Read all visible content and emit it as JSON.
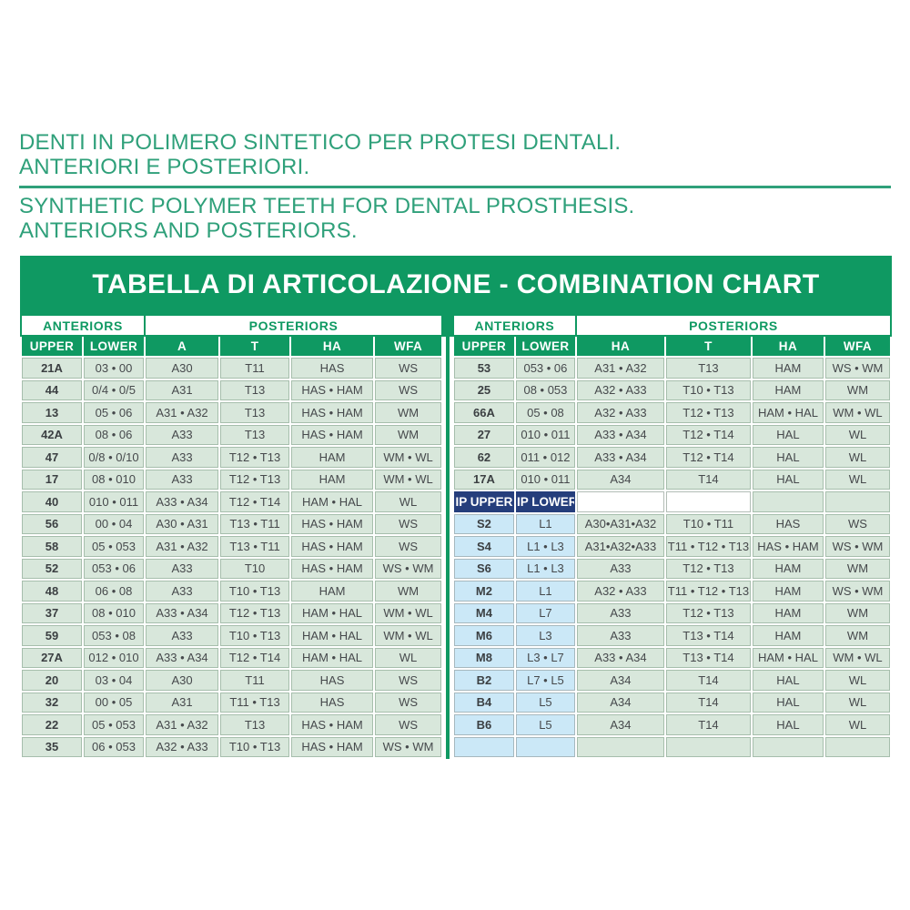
{
  "page": {
    "heading_it": [
      "DENTI IN POLIMERO SINTETICO PER PROTESI DENTALI.",
      "ANTERIORI E POSTERIORI."
    ],
    "heading_en": [
      "SYNTHETIC POLYMER TEETH FOR DENTAL PROSTHESIS.",
      "ANTERIORS AND POSTERIORS."
    ]
  },
  "chart": {
    "title": "TABELLA DI ARTICOLAZIONE - COMBINATION CHART",
    "colors": {
      "band_green": "#0F9962",
      "heading_green": "#2FA07A",
      "cell_green": "#D8E7DB",
      "cell_green_border": "#A6BEAC",
      "cell_blue": "#CBE8F7",
      "ip_navy": "#253E7C",
      "body_text": "#46494C"
    },
    "left_table": {
      "group_headers": [
        "ANTERIORS",
        "POSTERIORS"
      ],
      "columns": [
        "UPPER",
        "LOWER",
        "A",
        "T",
        "HA",
        "WFA"
      ],
      "rows": [
        [
          "21A",
          "03 • 00",
          "A30",
          "T11",
          "HAS",
          "WS"
        ],
        [
          "44",
          "0/4 • 0/5",
          "A31",
          "T13",
          "HAS • HAM",
          "WS"
        ],
        [
          "13",
          "05 • 06",
          "A31 • A32",
          "T13",
          "HAS • HAM",
          "WM"
        ],
        [
          "42A",
          "08 • 06",
          "A33",
          "T13",
          "HAS • HAM",
          "WM"
        ],
        [
          "47",
          "0/8 • 0/10",
          "A33",
          "T12 • T13",
          "HAM",
          "WM • WL"
        ],
        [
          "17",
          "08 • 010",
          "A33",
          "T12 • T13",
          "HAM",
          "WM • WL"
        ],
        [
          "40",
          "010 • 011",
          "A33 • A34",
          "T12 • T14",
          "HAM • HAL",
          "WL"
        ],
        [
          "56",
          "00 • 04",
          "A30 • A31",
          "T13 • T11",
          "HAS • HAM",
          "WS"
        ],
        [
          "58",
          "05 • 053",
          "A31 • A32",
          "T13 • T11",
          "HAS • HAM",
          "WS"
        ],
        [
          "52",
          "053 • 06",
          "A33",
          "T10",
          "HAS • HAM",
          "WS • WM"
        ],
        [
          "48",
          "06 • 08",
          "A33",
          "T10 • T13",
          "HAM",
          "WM"
        ],
        [
          "37",
          "08 • 010",
          "A33 • A34",
          "T12 • T13",
          "HAM • HAL",
          "WM • WL"
        ],
        [
          "59",
          "053 • 08",
          "A33",
          "T10 • T13",
          "HAM • HAL",
          "WM • WL"
        ],
        [
          "27A",
          "012 • 010",
          "A33 • A34",
          "T12 • T14",
          "HAM • HAL",
          "WL"
        ],
        [
          "20",
          "03 • 04",
          "A30",
          "T11",
          "HAS",
          "WS"
        ],
        [
          "32",
          "00 • 05",
          "A31",
          "T11 • T13",
          "HAS",
          "WS"
        ],
        [
          "22",
          "05 • 053",
          "A31 • A32",
          "T13",
          "HAS • HAM",
          "WS"
        ],
        [
          "35",
          "06 • 053",
          "A32 • A33",
          "T10 • T13",
          "HAS • HAM",
          "WS • WM"
        ]
      ]
    },
    "right_table": {
      "group_headers": [
        "ANTERIORS",
        "POSTERIORS"
      ],
      "columns": [
        "UPPER",
        "LOWER",
        "HA",
        "T",
        "HA",
        "WFA"
      ],
      "rows_top": [
        [
          "53",
          "053 • 06",
          "A31 • A32",
          "T13",
          "HAM",
          "WS • WM"
        ],
        [
          "25",
          "08 • 053",
          "A32 • A33",
          "T10 • T13",
          "HAM",
          "WM"
        ],
        [
          "66A",
          "05 • 08",
          "A32 • A33",
          "T12 • T13",
          "HAM • HAL",
          "WM • WL"
        ],
        [
          "27",
          "010 • 011",
          "A33 • A34",
          "T12 • T14",
          "HAL",
          "WL"
        ],
        [
          "62",
          "011 • 012",
          "A33 • A34",
          "T12 • T14",
          "HAL",
          "WL"
        ],
        [
          "17A",
          "010 • 011",
          "A34",
          "T14",
          "HAL",
          "WL"
        ]
      ],
      "ip_header": {
        "upper": "IP UPPER",
        "lower": "IP LOWER"
      },
      "rows_ip": [
        [
          "S2",
          "L1",
          "A30•A31•A32",
          "T10 • T11",
          "HAS",
          "WS"
        ],
        [
          "S4",
          "L1 • L3",
          "A31•A32•A33",
          "T11 • T12 • T13",
          "HAS • HAM",
          "WS • WM"
        ],
        [
          "S6",
          "L1 • L3",
          "A33",
          "T12 • T13",
          "HAM",
          "WM"
        ],
        [
          "M2",
          "L1",
          "A32 • A33",
          "T11 • T12 • T13",
          "HAM",
          "WS • WM"
        ],
        [
          "M4",
          "L7",
          "A33",
          "T12 • T13",
          "HAM",
          "WM"
        ],
        [
          "M6",
          "L3",
          "A33",
          "T13 • T14",
          "HAM",
          "WM"
        ],
        [
          "M8",
          "L3 • L7",
          "A33 • A34",
          "T13 • T14",
          "HAM • HAL",
          "WM • WL"
        ],
        [
          "B2",
          "L7 • L5",
          "A34",
          "T14",
          "HAL",
          "WL"
        ],
        [
          "B4",
          "L5",
          "A34",
          "T14",
          "HAL",
          "WL"
        ],
        [
          "B6",
          "L5",
          "A34",
          "T14",
          "HAL",
          "WL"
        ]
      ]
    }
  }
}
